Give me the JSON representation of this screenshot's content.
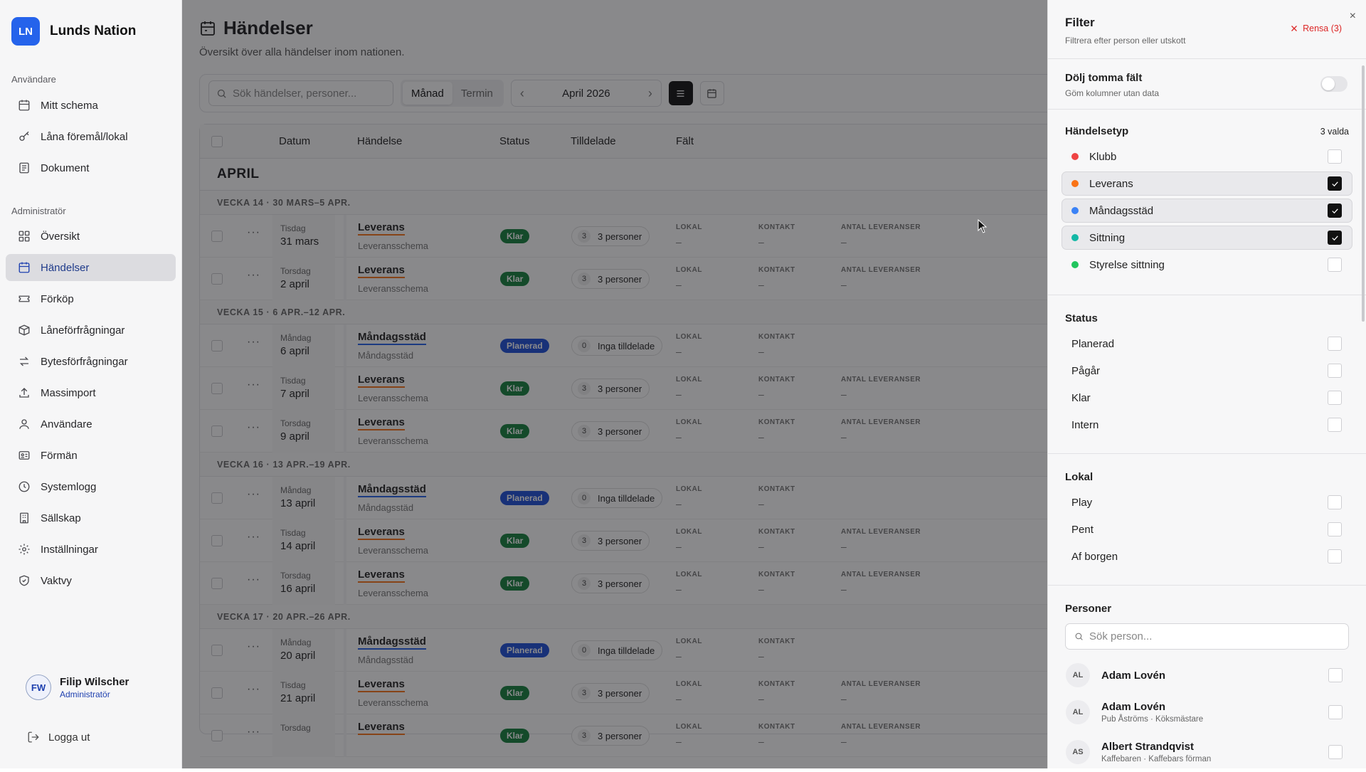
{
  "app": {
    "logo": "LN",
    "name": "Lunds Nation"
  },
  "sidebar": {
    "section_user": "Användare",
    "section_admin": "Administratör",
    "user_items": [
      {
        "label": "Mitt schema",
        "icon": "calendar-icon"
      },
      {
        "label": "Låna föremål/lokal",
        "icon": "key-icon"
      },
      {
        "label": "Dokument",
        "icon": "document-icon"
      }
    ],
    "admin_items": [
      {
        "label": "Översikt",
        "icon": "grid-icon"
      },
      {
        "label": "Händelser",
        "icon": "calendar-icon",
        "active": true
      },
      {
        "label": "Förköp",
        "icon": "ticket-icon"
      },
      {
        "label": "Låneförfrågningar",
        "icon": "package-icon"
      },
      {
        "label": "Bytesförfrågningar",
        "icon": "swap-icon"
      },
      {
        "label": "Massimport",
        "icon": "upload-icon"
      },
      {
        "label": "Användare",
        "icon": "user-icon"
      },
      {
        "label": "Förmän",
        "icon": "id-card-icon"
      },
      {
        "label": "Systemlogg",
        "icon": "history-icon"
      },
      {
        "label": "Sällskap",
        "icon": "building-icon"
      },
      {
        "label": "Inställningar",
        "icon": "gear-icon"
      },
      {
        "label": "Vaktvy",
        "icon": "shield-icon"
      }
    ],
    "user": {
      "initials": "FW",
      "name": "Filip Wilscher",
      "role": "Administratör"
    },
    "logout": "Logga ut"
  },
  "page": {
    "title": "Händelser",
    "subtitle": "Översikt över alla händelser inom nationen."
  },
  "toolbar": {
    "search_placeholder": "Sök händelser, personer...",
    "view_month": "Månad",
    "view_term": "Termin",
    "period": "April 2026",
    "prev": "‹",
    "next": "›"
  },
  "table": {
    "columns": {
      "date": "Datum",
      "event": "Händelse",
      "status": "Status",
      "assigned": "Tilldelade",
      "fields": "Fält"
    },
    "month": "APRIL",
    "field_labels": {
      "lokal": "LOKAL",
      "kontakt": "KONTAKT",
      "antal": "ANTAL LEVERANSER"
    },
    "empty": "–",
    "groups": [
      {
        "week": "VECKA 14 · 30 MARS–5 APR.",
        "rows": [
          {
            "day": "Tisdag",
            "date": "31 mars",
            "name": "Leverans",
            "type": "Leveransschema",
            "status": "Klar",
            "count": "3",
            "assigned": "3 personer",
            "antal": true
          },
          {
            "day": "Torsdag",
            "date": "2 april",
            "name": "Leverans",
            "type": "Leveransschema",
            "status": "Klar",
            "count": "3",
            "assigned": "3 personer",
            "antal": true
          }
        ]
      },
      {
        "week": "VECKA 15 · 6 APR.–12 APR.",
        "rows": [
          {
            "day": "Måndag",
            "date": "6 april",
            "name": "Måndagsstäd",
            "type": "Måndagsstäd",
            "status": "Planerad",
            "count": "0",
            "assigned": "Inga tilldelade",
            "antal": false
          },
          {
            "day": "Tisdag",
            "date": "7 april",
            "name": "Leverans",
            "type": "Leveransschema",
            "status": "Klar",
            "count": "3",
            "assigned": "3 personer",
            "antal": true
          },
          {
            "day": "Torsdag",
            "date": "9 april",
            "name": "Leverans",
            "type": "Leveransschema",
            "status": "Klar",
            "count": "3",
            "assigned": "3 personer",
            "antal": true
          }
        ]
      },
      {
        "week": "VECKA 16 · 13 APR.–19 APR.",
        "rows": [
          {
            "day": "Måndag",
            "date": "13 april",
            "name": "Måndagsstäd",
            "type": "Måndagsstäd",
            "status": "Planerad",
            "count": "0",
            "assigned": "Inga tilldelade",
            "antal": false
          },
          {
            "day": "Tisdag",
            "date": "14 april",
            "name": "Leverans",
            "type": "Leveransschema",
            "status": "Klar",
            "count": "3",
            "assigned": "3 personer",
            "antal": true
          },
          {
            "day": "Torsdag",
            "date": "16 april",
            "name": "Leverans",
            "type": "Leveransschema",
            "status": "Klar",
            "count": "3",
            "assigned": "3 personer",
            "antal": true
          }
        ]
      },
      {
        "week": "VECKA 17 · 20 APR.–26 APR.",
        "rows": [
          {
            "day": "Måndag",
            "date": "20 april",
            "name": "Måndagsstäd",
            "type": "Måndagsstäd",
            "status": "Planerad",
            "count": "0",
            "assigned": "Inga tilldelade",
            "antal": false
          },
          {
            "day": "Tisdag",
            "date": "21 april",
            "name": "Leverans",
            "type": "Leveransschema",
            "status": "Klar",
            "count": "3",
            "assigned": "3 personer",
            "antal": true
          },
          {
            "day": "Torsdag",
            "date": "",
            "name": "Leverans",
            "type": "",
            "status": "Klar",
            "count": "3",
            "assigned": "3 personer",
            "antal": true
          }
        ]
      }
    ]
  },
  "colors": {
    "leverans": "#f97316",
    "mandagsstad": "#2563eb",
    "klar": "#15803d",
    "planerad": "#1d4ed8",
    "accent": "#2563eb",
    "danger": "#dc2626"
  },
  "filter": {
    "title": "Filter",
    "subtitle": "Filtrera efter person eller utskott",
    "clear": "Rensa (3)",
    "close": "×",
    "hide_empty": {
      "label": "Dölj tomma fält",
      "desc": "Göm kolumner utan data",
      "on": false
    },
    "event_types": {
      "title": "Händelsetyp",
      "count": "3 valda",
      "items": [
        {
          "label": "Klubb",
          "color": "#ef4444",
          "checked": false
        },
        {
          "label": "Leverans",
          "color": "#f97316",
          "checked": true
        },
        {
          "label": "Måndagsstäd",
          "color": "#3b82f6",
          "checked": true
        },
        {
          "label": "Sittning",
          "color": "#14b8a6",
          "checked": true
        },
        {
          "label": "Styrelse sittning",
          "color": "#22c55e",
          "checked": false
        }
      ]
    },
    "status": {
      "title": "Status",
      "items": [
        "Planerad",
        "Pågår",
        "Klar",
        "Intern"
      ]
    },
    "venue": {
      "title": "Lokal",
      "items": [
        "Play",
        "Pent",
        "Af borgen"
      ]
    },
    "people": {
      "title": "Personer",
      "search_placeholder": "Sök person...",
      "items": [
        {
          "initials": "AL",
          "name": "Adam Lovén",
          "desc": ""
        },
        {
          "initials": "AL",
          "name": "Adam Lovén",
          "desc": "Pub Åströms · Köksmästare"
        },
        {
          "initials": "AS",
          "name": "Albert Strandqvist",
          "desc": "Kaffebaren · Kaffebars förman"
        }
      ]
    }
  }
}
